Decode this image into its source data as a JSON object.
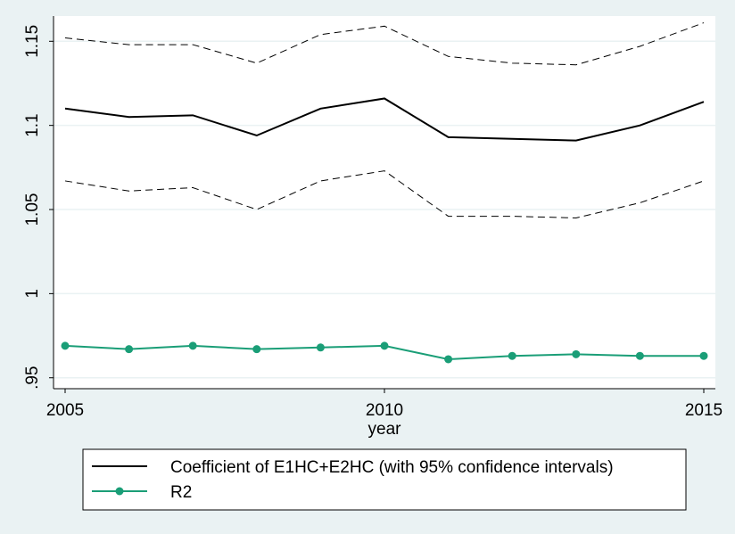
{
  "chart_data": {
    "type": "line",
    "x": [
      2005,
      2006,
      2007,
      2008,
      2009,
      2010,
      2011,
      2012,
      2013,
      2014,
      2015
    ],
    "series": [
      {
        "name": "Coefficient of E1HC+E2HC (with 95% confidence intervals)",
        "role": "coefficient",
        "color": "#000000",
        "style": "solid",
        "markers": false,
        "values": [
          1.11,
          1.105,
          1.106,
          1.094,
          1.11,
          1.116,
          1.093,
          1.092,
          1.091,
          1.1,
          1.114
        ]
      },
      {
        "role": "ci-upper",
        "color": "#000000",
        "style": "dashed",
        "markers": false,
        "values": [
          1.152,
          1.148,
          1.148,
          1.137,
          1.154,
          1.159,
          1.141,
          1.137,
          1.136,
          1.147,
          1.161
        ]
      },
      {
        "role": "ci-lower",
        "color": "#000000",
        "style": "dashed",
        "markers": false,
        "values": [
          1.067,
          1.061,
          1.063,
          1.05,
          1.067,
          1.073,
          1.046,
          1.046,
          1.045,
          1.054,
          1.067
        ]
      },
      {
        "name": "R2",
        "role": "r2",
        "color": "#1a9e77",
        "style": "solid",
        "markers": true,
        "values": [
          0.969,
          0.967,
          0.969,
          0.967,
          0.968,
          0.969,
          0.961,
          0.963,
          0.964,
          0.963,
          0.963
        ]
      }
    ],
    "xlabel": "year",
    "ylabel": "",
    "xlim": [
      2005,
      2015
    ],
    "ylim": [
      0.9435,
      1.165
    ],
    "xticks": [
      2005,
      2010,
      2015
    ],
    "yticks": [
      0.95,
      1,
      1.05,
      1.1,
      1.15
    ],
    "xtick_labels": [
      "2005",
      "2010",
      "2015"
    ],
    "ytick_labels": [
      ".95",
      "1",
      "1.05",
      "1.1",
      "1.15"
    ],
    "grid": true,
    "legend_position": "bottom",
    "legend": [
      "Coefficient of E1HC+E2HC (with 95% confidence intervals)",
      "R2"
    ],
    "background_color": "#eaf2f3",
    "plot_background_color": "#ffffff",
    "grid_color": "#eaf2f3"
  }
}
